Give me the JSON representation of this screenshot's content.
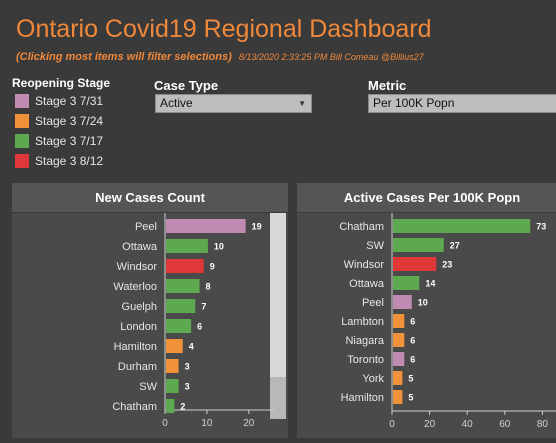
{
  "header": {
    "title": "Ontario Covid19 Regional Dashboard",
    "subtitle_click": "(Clicking most items will filter selections)",
    "subtitle_meta": "8/13/2020 2:33:25 PM  Bill Comeau @Billius27"
  },
  "legend": {
    "title": "Reopening Stage",
    "items": [
      {
        "label": "Stage 3 7/31",
        "color": "#c08bb0"
      },
      {
        "label": "Stage 3 7/24",
        "color": "#f0923a"
      },
      {
        "label": "Stage 3 7/17",
        "color": "#5ea84f"
      },
      {
        "label": "Stage 3 8/12",
        "color": "#e03838"
      }
    ]
  },
  "filters": {
    "case_type": {
      "label": "Case Type",
      "value": "Active"
    },
    "metric": {
      "label": "Metric",
      "value": "Per 100K Popn"
    }
  },
  "panels": {
    "left_title": "New Cases Count",
    "right_title": "Active Cases Per 100K Popn"
  },
  "chart_data": [
    {
      "type": "bar",
      "title": "New Cases Count",
      "categories": [
        "Peel",
        "Ottawa",
        "Windsor",
        "Waterloo",
        "Guelph",
        "London",
        "Hamilton",
        "Durham",
        "SW",
        "Chatham"
      ],
      "values": [
        19,
        10,
        9,
        8,
        7,
        6,
        4,
        3,
        3,
        2
      ],
      "colors": [
        "#c08bb0",
        "#5ea84f",
        "#e03838",
        "#5ea84f",
        "#5ea84f",
        "#5ea84f",
        "#f0923a",
        "#f0923a",
        "#5ea84f",
        "#5ea84f"
      ],
      "xticks": [
        "0",
        "10",
        "20"
      ],
      "xlim": [
        0,
        25
      ]
    },
    {
      "type": "bar",
      "title": "Active Cases Per 100K Popn",
      "categories": [
        "Chatham",
        "SW",
        "Windsor",
        "Ottawa",
        "Peel",
        "Lambton",
        "Niagara",
        "Toronto",
        "York",
        "Hamilton"
      ],
      "values": [
        73,
        27,
        23,
        14,
        10,
        6,
        6,
        6,
        5,
        5
      ],
      "colors": [
        "#5ea84f",
        "#5ea84f",
        "#e03838",
        "#5ea84f",
        "#c08bb0",
        "#f0923a",
        "#f0923a",
        "#c08bb0",
        "#f0923a",
        "#f0923a"
      ],
      "xticks": [
        "0",
        "20",
        "40",
        "60",
        "80"
      ],
      "xlim": [
        0,
        88
      ]
    }
  ]
}
